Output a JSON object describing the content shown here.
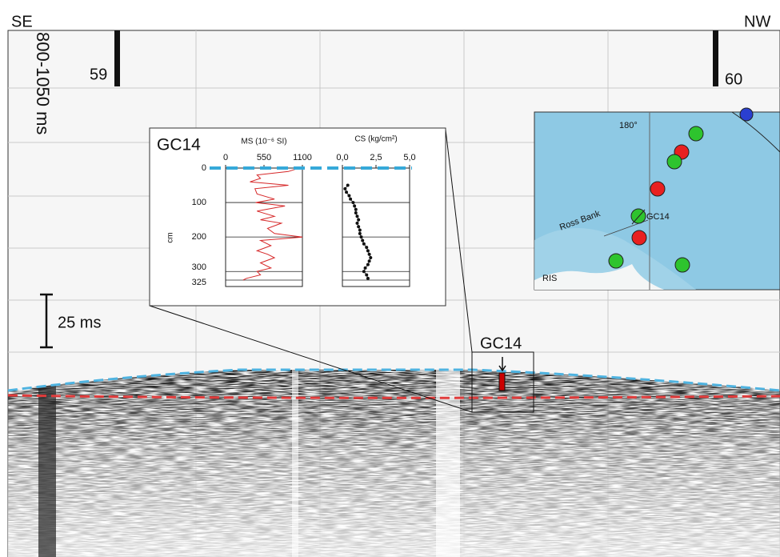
{
  "labels": {
    "left": "SE",
    "right": "NW",
    "time_window": "800-1050 ms",
    "shotpoint_a": "59",
    "shotpoint_b": "60",
    "scale_bar": "25 ms",
    "core_marker": "GC14"
  },
  "inset": {
    "title": "GC14",
    "depth_label": "cm",
    "depth_lim": [
      0,
      325
    ],
    "depth_ticks": [
      0,
      100,
      200,
      300,
      325
    ],
    "ms": {
      "title": "MS (10⁻⁶ SI)",
      "xlim": [
        0,
        1100
      ],
      "xticks": [
        0,
        550,
        1100
      ],
      "color": "#d62728",
      "depth": [
        0,
        10,
        20,
        30,
        40,
        50,
        60,
        75,
        90,
        100,
        110,
        125,
        140,
        150,
        160,
        175,
        190,
        200,
        210,
        225,
        240,
        250,
        260,
        275,
        290,
        300,
        310,
        320,
        325
      ],
      "values": [
        1050,
        900,
        450,
        500,
        350,
        900,
        420,
        450,
        700,
        430,
        850,
        450,
        700,
        500,
        800,
        600,
        700,
        1100,
        500,
        650,
        450,
        600,
        700,
        500,
        650,
        450,
        500,
        300,
        250
      ]
    },
    "cs": {
      "title": "CS (kg/cm²)",
      "xlim": [
        0,
        5
      ],
      "xticks": [
        {
          "value": 0,
          "label": "0,0"
        },
        {
          "value": 2.5,
          "label": "2,5"
        },
        {
          "value": 5,
          "label": "5,0"
        }
      ],
      "color": "#111111",
      "depth": [
        50,
        60,
        70,
        80,
        90,
        100,
        110,
        120,
        130,
        140,
        150,
        160,
        170,
        180,
        190,
        200,
        210,
        220,
        230,
        240,
        250,
        260,
        270,
        280,
        290,
        300,
        310,
        320
      ],
      "values": [
        0.4,
        0.2,
        0.3,
        0.5,
        0.6,
        0.8,
        0.9,
        1.0,
        1.0,
        1.1,
        1.2,
        1.1,
        1.2,
        1.3,
        1.3,
        1.4,
        1.5,
        1.6,
        1.8,
        1.9,
        2.0,
        2.1,
        2.0,
        1.9,
        1.7,
        1.6,
        1.8,
        1.9
      ]
    }
  },
  "map": {
    "longitude": "180°",
    "feature": "Ross Bank",
    "core": "GC14",
    "ice_shelf": "RIS"
  }
}
